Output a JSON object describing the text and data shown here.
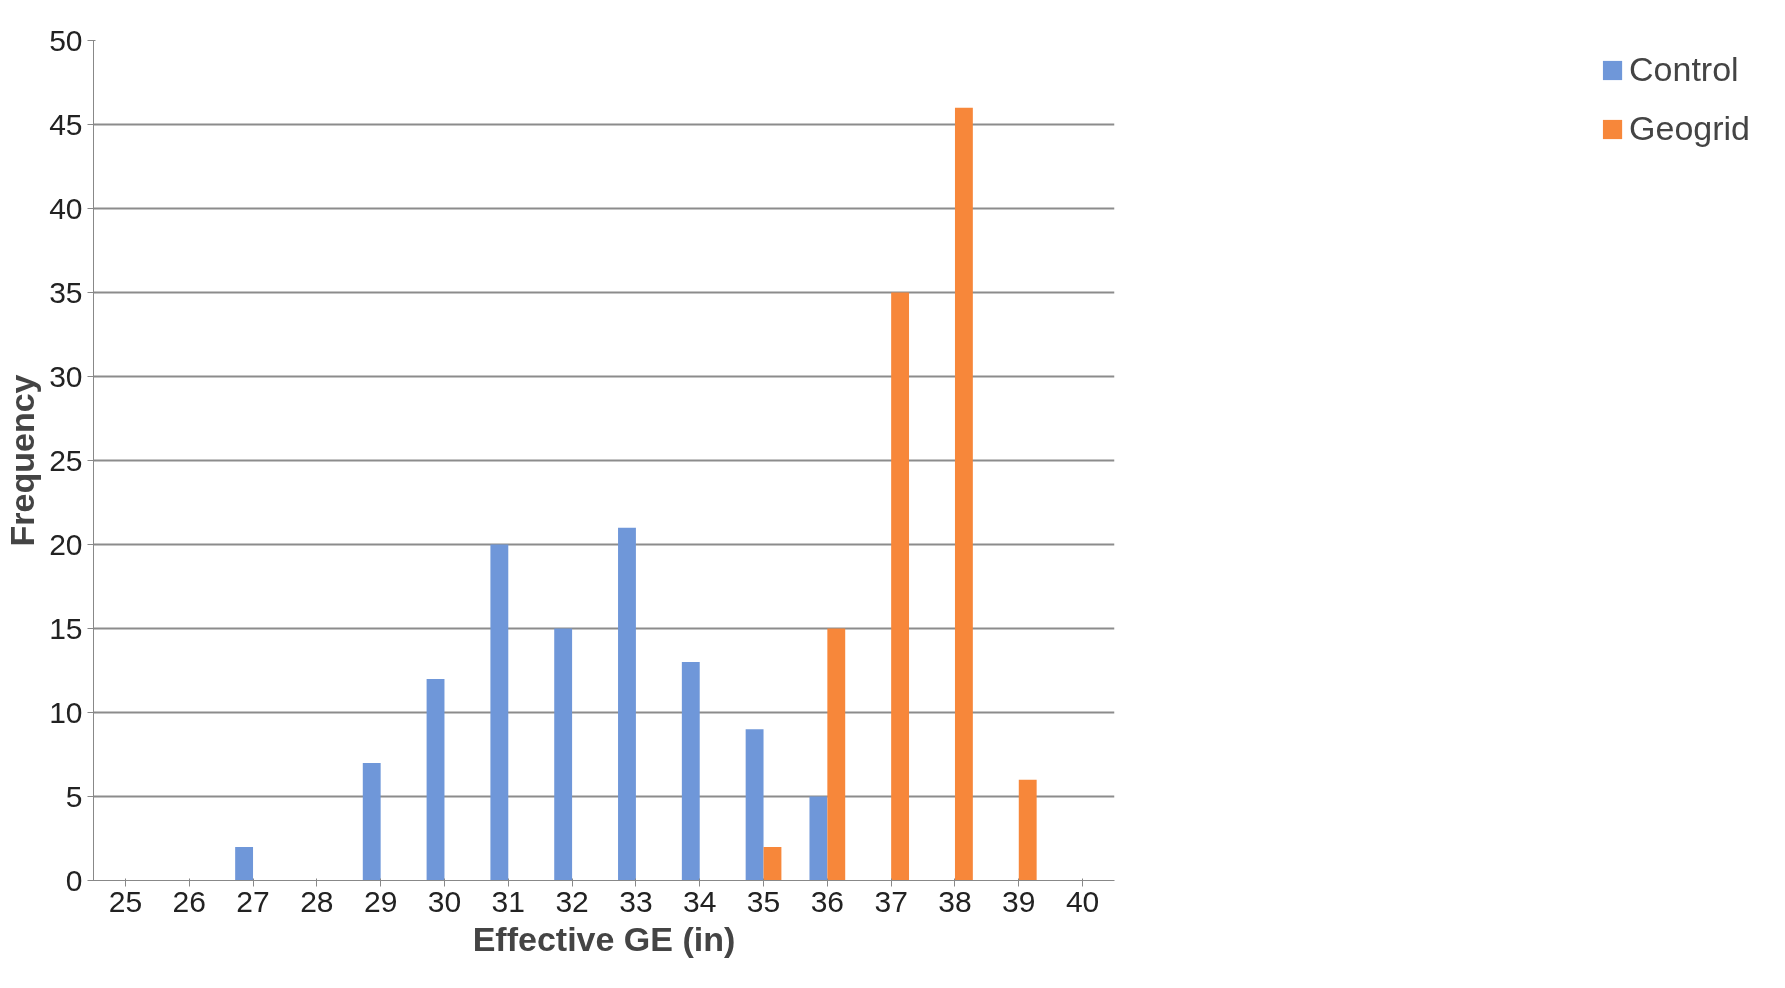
{
  "chart_data": {
    "type": "bar",
    "xlabel": "Effective GE (in)",
    "ylabel": "Frequency",
    "categories": [
      "25",
      "26",
      "27",
      "28",
      "29",
      "30",
      "31",
      "32",
      "33",
      "34",
      "35",
      "36",
      "37",
      "38",
      "39",
      "40"
    ],
    "series": [
      {
        "name": "Control",
        "color": "#6f97d9",
        "values": [
          0,
          0,
          2,
          0,
          7,
          12,
          20,
          15,
          21,
          13,
          9,
          5,
          0,
          0,
          0,
          0
        ]
      },
      {
        "name": "Geogrid",
        "color": "#f7873a",
        "values": [
          0,
          0,
          0,
          0,
          0,
          0,
          0,
          0,
          0,
          0,
          2,
          15,
          35,
          46,
          6,
          0
        ]
      }
    ],
    "ylim": [
      0,
      50
    ],
    "yticks": [
      0,
      5,
      10,
      15,
      20,
      25,
      30,
      35,
      40,
      45,
      50
    ],
    "grid": "y",
    "legend": "right"
  }
}
